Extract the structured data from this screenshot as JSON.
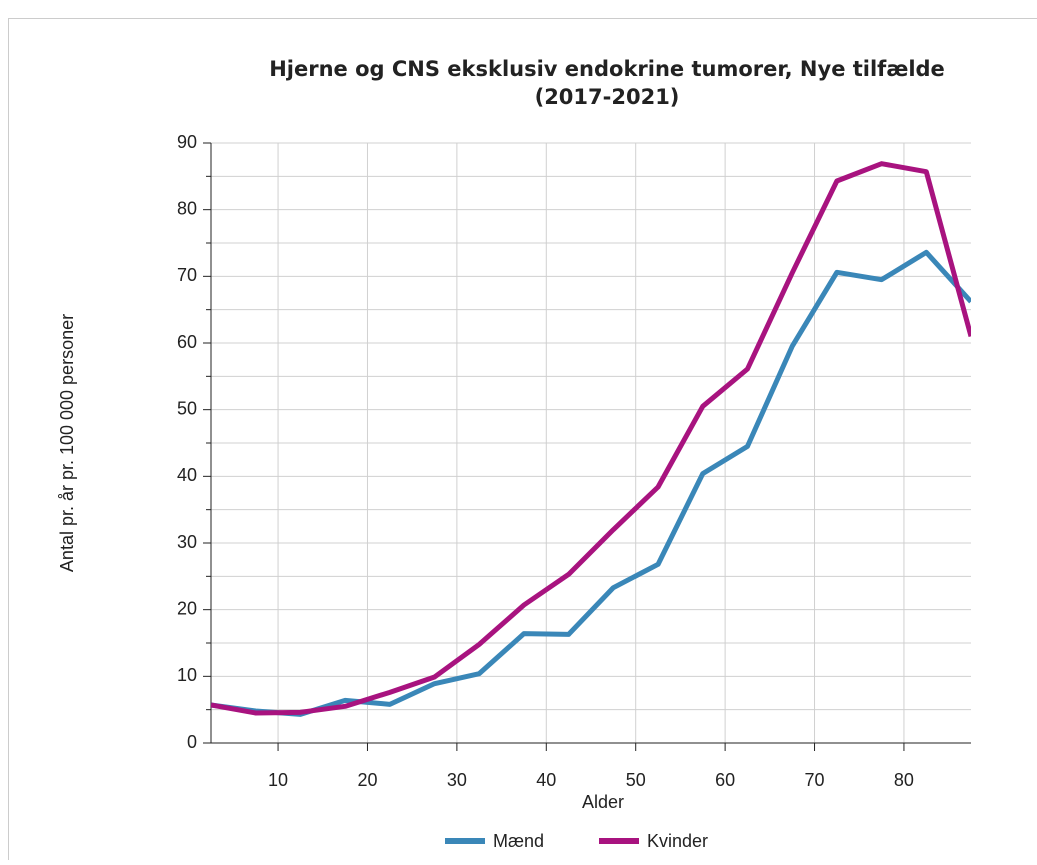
{
  "chart_data": {
    "type": "line",
    "title": "Hjerne og CNS eksklusiv endokrine tumorer, Nye tilfælde",
    "subtitle": "(2017-2021)",
    "x_label": "Alder",
    "y_label": "Antal pr. år pr. 100 000 personer",
    "x": [
      2.5,
      7.5,
      12.5,
      17.5,
      22.5,
      27.5,
      32.5,
      37.5,
      42.5,
      47.5,
      52.5,
      57.5,
      62.5,
      67.5,
      72.5,
      77.5,
      82.5,
      87.5
    ],
    "series": [
      {
        "name": "Mænd",
        "color": "#3a87b8",
        "values": [
          5.7,
          4.8,
          4.3,
          6.4,
          5.8,
          8.9,
          10.4,
          16.4,
          16.3,
          23.3,
          26.8,
          40.4,
          44.5,
          59.5,
          70.6,
          69.5,
          73.6,
          66.2
        ]
      },
      {
        "name": "Kvinder",
        "color": "#a8137f",
        "values": [
          5.7,
          4.5,
          4.6,
          5.5,
          7.6,
          9.9,
          14.8,
          20.7,
          25.3,
          32.0,
          38.4,
          50.5,
          56.1,
          70.5,
          84.3,
          86.9,
          85.7,
          61.0
        ]
      }
    ],
    "xlim": [
      2.5,
      87.5
    ],
    "xticks": [
      10,
      20,
      30,
      40,
      50,
      60,
      70,
      80
    ],
    "ylim": [
      0,
      90
    ],
    "yticks": [
      0,
      10,
      20,
      30,
      40,
      50,
      60,
      70,
      80,
      90
    ],
    "yminor_ticks": [
      5,
      15,
      25,
      35,
      45,
      55,
      65,
      75,
      85
    ],
    "grid": true,
    "legend": "bottom"
  }
}
